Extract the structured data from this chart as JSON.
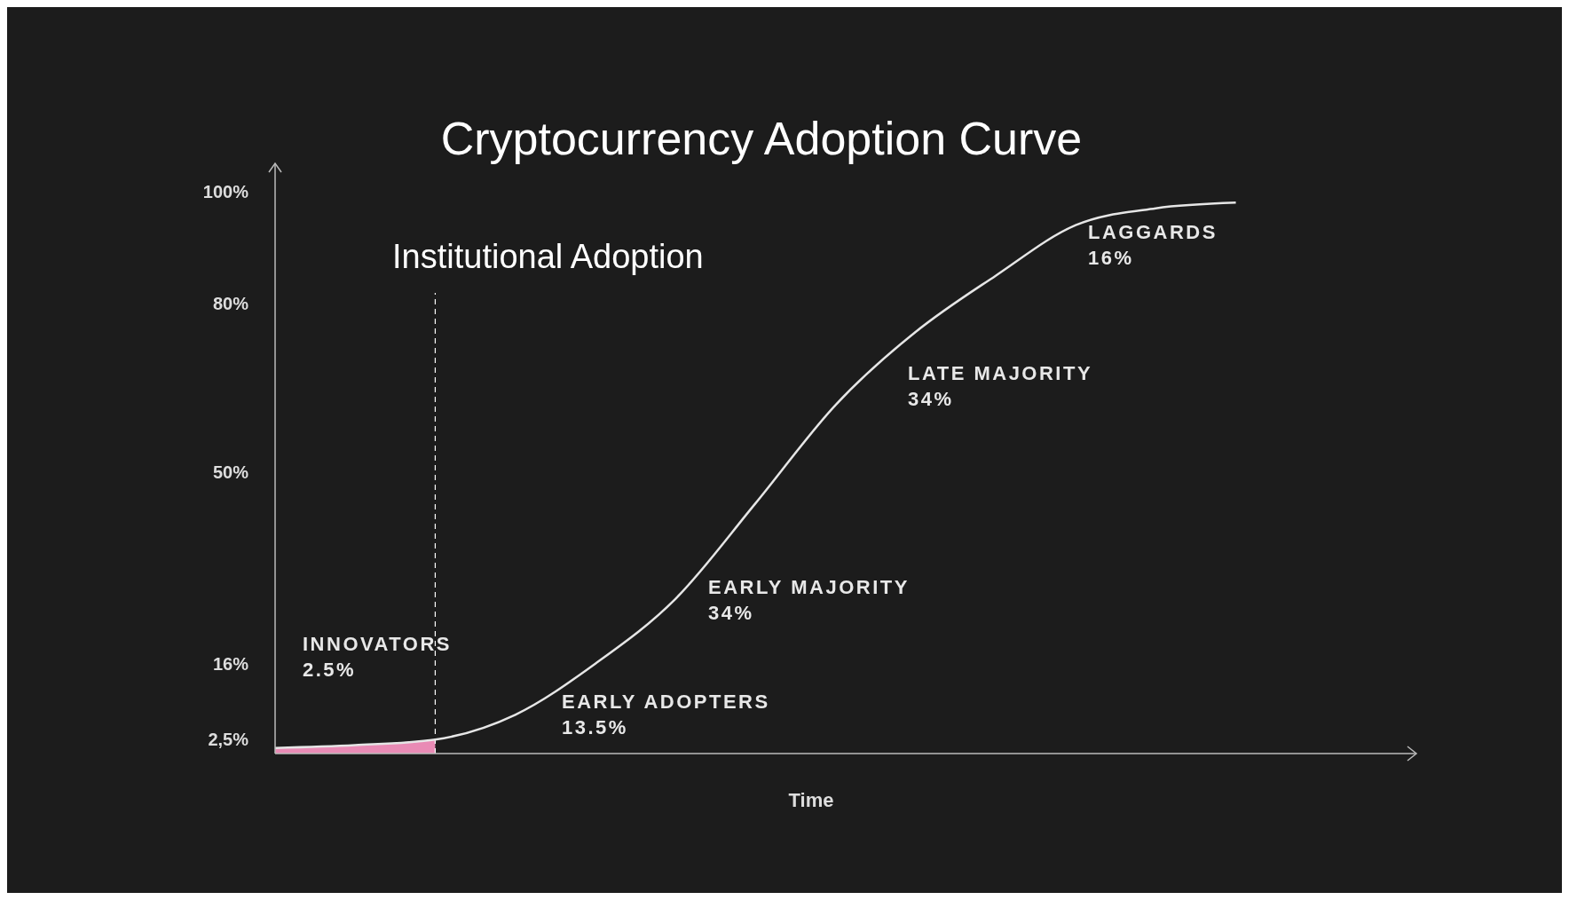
{
  "chart_data": {
    "type": "line",
    "title": "Cryptocurrency Adoption Curve",
    "xlabel": "Time",
    "categories": [
      null,
      null,
      null,
      null,
      null,
      null,
      null,
      null,
      null,
      null,
      null,
      null,
      null,
      null,
      null
    ],
    "series": [
      {
        "type": "area",
        "color": "#e98bb5",
        "values": [
          1,
          1.5,
          2.5,
          null,
          null,
          null,
          null,
          null,
          null,
          null,
          null,
          null,
          null,
          null,
          null
        ]
      },
      {
        "color": "#e6e6e6",
        "values": [
          1,
          1.5,
          2.5,
          6.9,
          16,
          27.5,
          44.5,
          62,
          75,
          85,
          94,
          97,
          98,
          null,
          null
        ]
      }
    ],
    "ylim": [
      0,
      105
    ],
    "yticks": [
      {
        "value": 2.5,
        "label": "2,5%"
      },
      {
        "value": 16,
        "label": "16%"
      },
      {
        "value": 50,
        "label": "50%"
      },
      {
        "value": 80,
        "label": "80%"
      },
      {
        "value": 100,
        "label": "100%"
      }
    ],
    "annotations": [
      "Institutional Adoption",
      "INNOVATORS\n2.5%",
      "EARLY ADOPTERS\n13.5%",
      "EARLY MAJORITY\n34%",
      "LATE MAJORITY\n34%",
      "LAGGARDS\n16%"
    ],
    "grid": false,
    "marker": "none",
    "line_style": "solid",
    "tick_labels": "y"
  }
}
